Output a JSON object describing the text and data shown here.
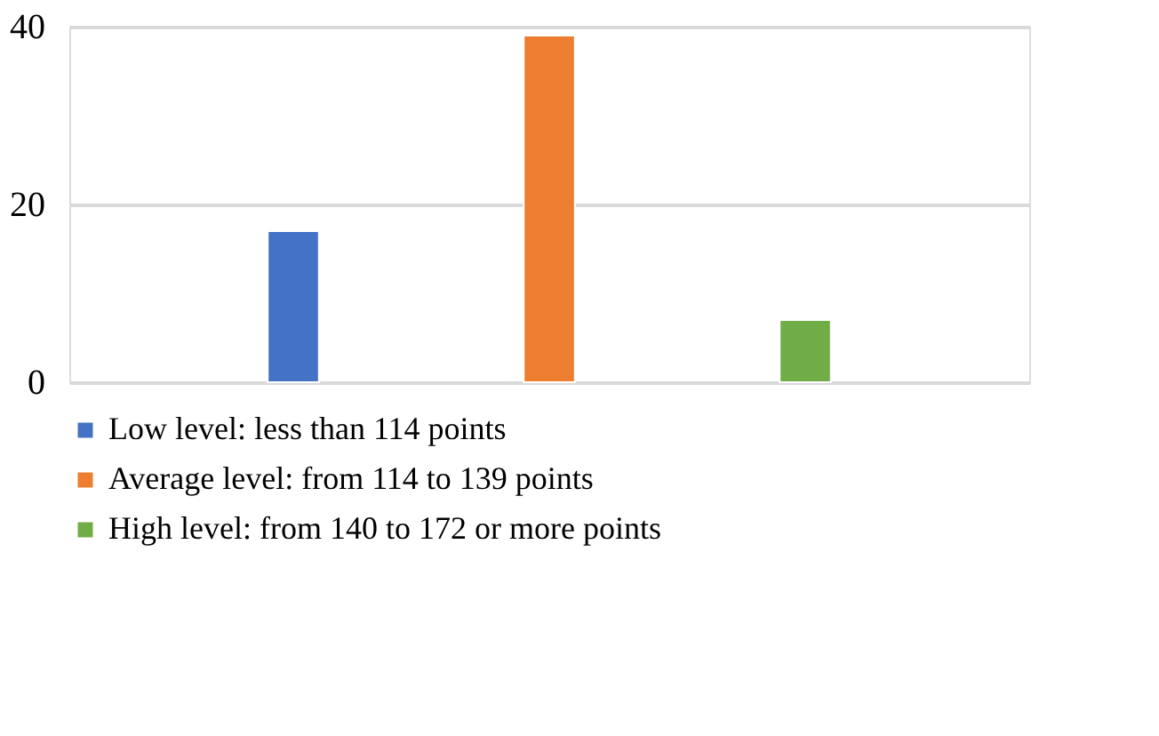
{
  "chart_data": {
    "type": "bar",
    "categories": [
      null
    ],
    "series": [
      {
        "name": "Low level: less than 114 points",
        "color": "#4472c4",
        "values": [
          17
        ]
      },
      {
        "name": "Average level: from 114 to 139 points",
        "color": "#ed7d31",
        "values": [
          39
        ]
      },
      {
        "name": "High level: from 140 to 172 or more points",
        "color": "#70ad47",
        "values": [
          7
        ]
      }
    ],
    "ylim": [
      0,
      40
    ],
    "yticks": [
      0,
      20,
      40
    ],
    "grid": "y",
    "legend": "bottom"
  }
}
